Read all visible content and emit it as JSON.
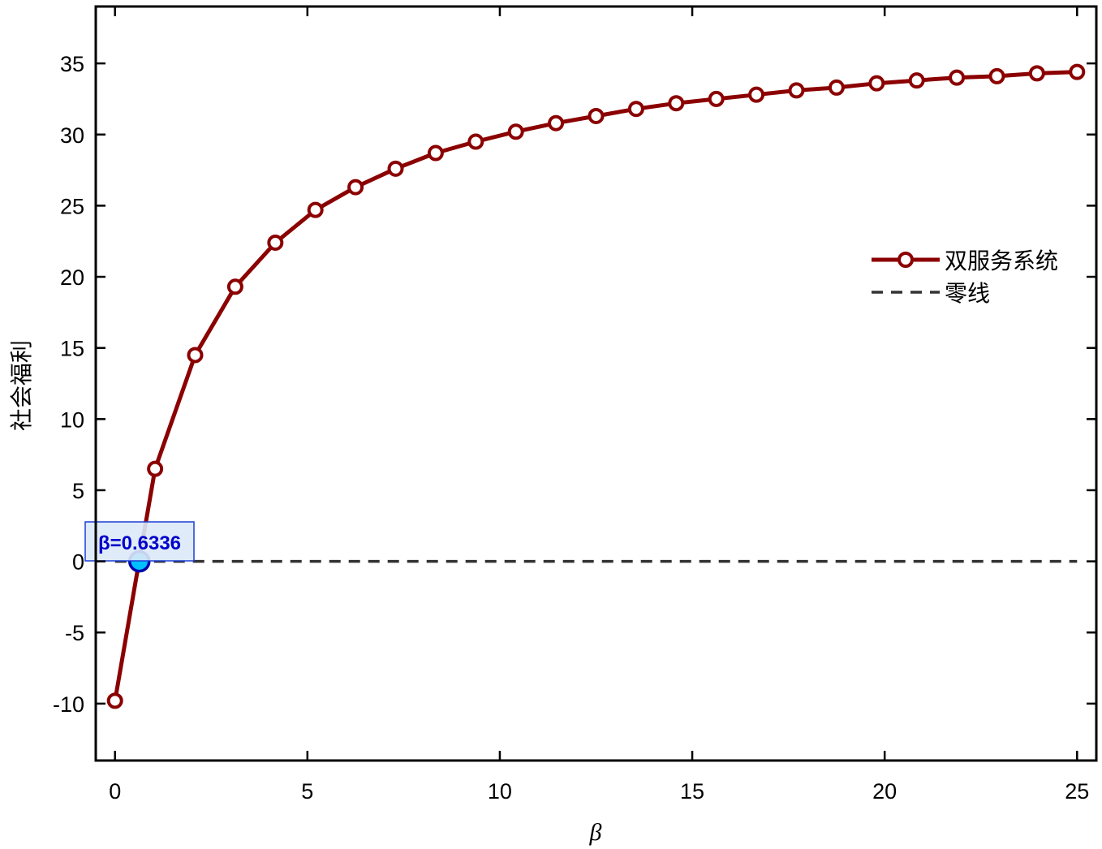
{
  "chart_data": {
    "type": "line",
    "xlabel": "β",
    "ylabel": "社会福利",
    "xlim": [
      -0.5,
      25.5
    ],
    "ylim": [
      -14,
      39
    ],
    "xticks": [
      0,
      5,
      10,
      15,
      20,
      25
    ],
    "yticks": [
      -10,
      -5,
      0,
      5,
      10,
      15,
      20,
      25,
      30,
      35
    ],
    "grid": false,
    "legend_position": "right",
    "series": [
      {
        "name": "双服务系统",
        "color": "#8b0000",
        "style": "solid-circle-markers",
        "x": [
          0,
          1.042,
          2.083,
          3.125,
          4.167,
          5.208,
          6.25,
          7.292,
          8.333,
          9.375,
          10.417,
          11.458,
          12.5,
          13.542,
          14.583,
          15.625,
          16.667,
          17.708,
          18.75,
          19.792,
          20.833,
          21.875,
          22.917,
          23.958,
          25
        ],
        "y": [
          -9.8,
          6.5,
          14.5,
          19.3,
          22.4,
          24.7,
          26.3,
          27.6,
          28.7,
          29.5,
          30.2,
          30.8,
          31.3,
          31.8,
          32.2,
          32.5,
          32.8,
          33.1,
          33.3,
          33.6,
          33.8,
          34.0,
          34.1,
          34.3,
          34.4
        ]
      },
      {
        "name": "零线",
        "color": "#333333",
        "style": "dashed",
        "x": [
          0,
          25
        ],
        "y": [
          0,
          0
        ]
      }
    ],
    "annotation": {
      "text": "β=0.6336",
      "x": 0.6336,
      "y": 0,
      "marker_color": "#00bfff",
      "text_color": "#0000cc"
    }
  }
}
